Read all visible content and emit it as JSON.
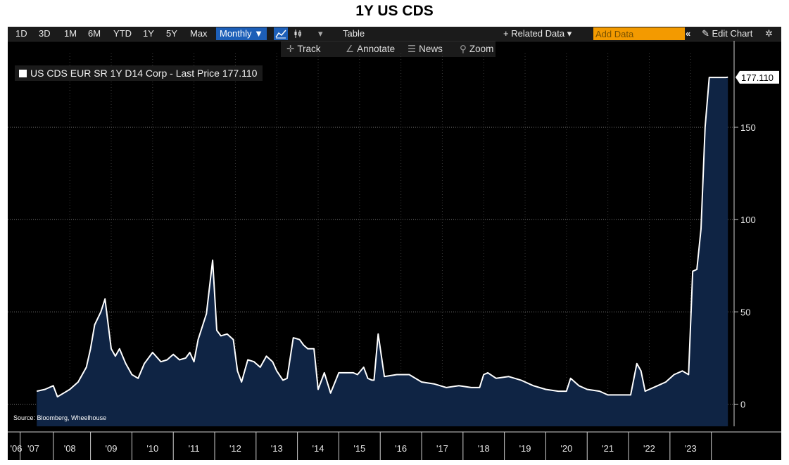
{
  "page": {
    "title": "1Y US CDS"
  },
  "toolbar": {
    "ranges": [
      "1D",
      "3D",
      "1M",
      "6M",
      "YTD",
      "1Y",
      "5Y",
      "Max"
    ],
    "frequency": "Monthly ▼",
    "chart_type_icon": "line-chart-icon",
    "alt_icon": "candlestick-icon",
    "dropdown": "▾",
    "table": "Table",
    "related_data": "+ Related Data ▾",
    "add_data_placeholder": "Add Data",
    "collapse": "«",
    "edit_chart": "✎ Edit Chart",
    "settings": "✲"
  },
  "subbar": {
    "track": "Track",
    "annotate": "Annotate",
    "news": "News",
    "zoom": "Zoom"
  },
  "legend": {
    "text": "US CDS EUR SR 1Y D14 Corp - Last Price 177.110"
  },
  "source": "Source: Bloomberg, Wheelhouse",
  "colors": {
    "background": "#000000",
    "line": "#ffffff",
    "fill": "#0f2444",
    "grid": "#7a7a7a"
  },
  "chart_data": {
    "type": "area",
    "title": "1Y US CDS",
    "series": [
      {
        "name": "US CDS EUR SR 1Y D14 Corp - Last Price",
        "x": [
          2007.2,
          2007.4,
          2007.6,
          2007.7,
          2007.85,
          2008.0,
          2008.2,
          2008.4,
          2008.5,
          2008.6,
          2008.75,
          2008.85,
          2009.0,
          2009.1,
          2009.2,
          2009.35,
          2009.5,
          2009.65,
          2009.8,
          2010.0,
          2010.2,
          2010.35,
          2010.5,
          2010.65,
          2010.8,
          2010.9,
          2011.0,
          2011.1,
          2011.3,
          2011.45,
          2011.55,
          2011.65,
          2011.8,
          2011.95,
          2012.05,
          2012.15,
          2012.3,
          2012.45,
          2012.6,
          2012.75,
          2012.9,
          2013.0,
          2013.15,
          2013.25,
          2013.4,
          2013.55,
          2013.65,
          2013.75,
          2013.9,
          2014.0,
          2014.15,
          2014.3,
          2014.5,
          2014.7,
          2014.85,
          2014.95,
          2015.1,
          2015.2,
          2015.3,
          2015.35,
          2015.45,
          2015.6,
          2015.9,
          2016.2,
          2016.5,
          2016.8,
          2017.1,
          2017.4,
          2017.7,
          2017.9,
          2018.0,
          2018.1,
          2018.3,
          2018.6,
          2018.9,
          2019.2,
          2019.5,
          2019.8,
          2020.0,
          2020.1,
          2020.3,
          2020.5,
          2020.8,
          2021.0,
          2021.2,
          2021.3,
          2021.5,
          2021.55,
          2021.7,
          2021.8,
          2021.9,
          2022.0,
          2022.2,
          2022.4,
          2022.6,
          2022.8,
          2022.95,
          2023.05,
          2023.15,
          2023.25,
          2023.35,
          2023.45,
          2023.55,
          2023.65,
          2023.75,
          2023.85,
          2023.9
        ],
        "values": [
          7,
          8,
          10,
          4,
          6,
          8,
          12,
          20,
          30,
          43,
          50,
          57,
          30,
          26,
          30,
          22,
          16,
          14,
          22,
          28,
          23,
          24,
          27,
          24,
          25,
          28,
          23,
          35,
          49,
          78,
          40,
          37,
          38,
          35,
          18,
          12,
          24,
          23,
          20,
          26,
          23,
          18,
          13,
          14,
          36,
          35,
          32,
          30,
          30,
          8,
          17,
          6,
          17,
          17,
          17,
          16,
          20,
          14,
          13,
          13,
          38,
          15,
          16,
          16,
          12,
          11,
          9,
          10,
          9,
          9,
          16,
          17,
          14,
          15,
          13,
          10,
          8,
          7,
          7,
          14,
          10,
          8,
          7,
          5,
          5,
          5,
          5,
          5,
          22,
          18,
          7,
          8,
          10,
          12,
          16,
          18,
          16,
          72,
          73,
          95,
          150,
          177,
          177,
          177,
          177,
          177,
          177.11
        ]
      }
    ],
    "last_price": "177.110",
    "ylim": [
      -12,
      190
    ],
    "yticks": [
      0,
      50,
      100,
      150
    ],
    "xlim": [
      2006.5,
      2024.05
    ],
    "x_ticks": [
      {
        "label": "'06",
        "x": 2006.5
      },
      {
        "label": "'07",
        "x": 2007.12
      },
      {
        "label": "'08",
        "x": 2008.0
      },
      {
        "label": "'09",
        "x": 2009.0
      },
      {
        "label": "'10",
        "x": 2010.0
      },
      {
        "label": "'11",
        "x": 2011.0
      },
      {
        "label": "'12",
        "x": 2012.0
      },
      {
        "label": "'13",
        "x": 2013.0
      },
      {
        "label": "'14",
        "x": 2014.0
      },
      {
        "label": "'15",
        "x": 2015.0
      },
      {
        "label": "'16",
        "x": 2016.0
      },
      {
        "label": "'17",
        "x": 2017.0
      },
      {
        "label": "'18",
        "x": 2018.0
      },
      {
        "label": "'19",
        "x": 2019.0
      },
      {
        "label": "'20",
        "x": 2020.0
      },
      {
        "label": "'21",
        "x": 2021.0
      },
      {
        "label": "'22",
        "x": 2022.0
      },
      {
        "label": "'23",
        "x": 2023.0
      }
    ],
    "x_separators": [
      2006.8,
      2007.6,
      2008.5,
      2009.5,
      2010.5,
      2011.5,
      2012.5,
      2013.5,
      2014.5,
      2015.5,
      2016.5,
      2017.5,
      2018.5,
      2019.5,
      2020.5,
      2021.5,
      2022.5,
      2023.5
    ],
    "grid": true,
    "legend": "top-left"
  }
}
